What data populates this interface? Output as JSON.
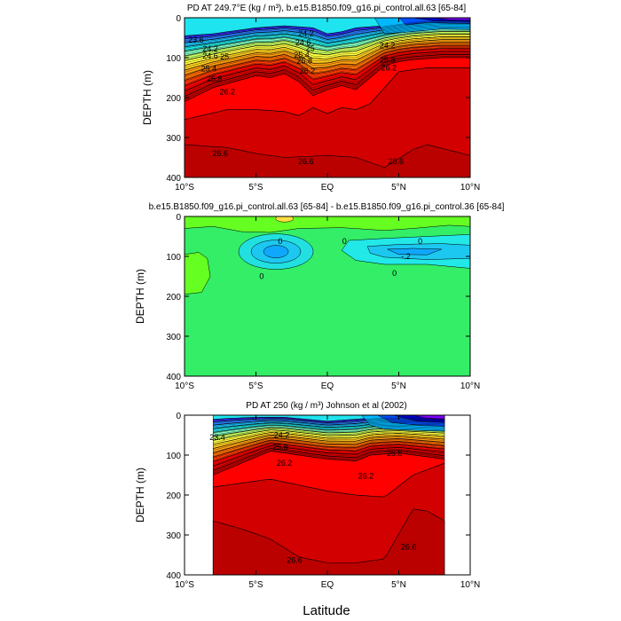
{
  "figure": {
    "xlabel": "Latitude"
  },
  "chart_data": [
    {
      "type": "heatmap",
      "title": "PD AT 249.7°E (kg / m³), b.e15.B1850.f09_g16.pi_control.all.63 [65-84]",
      "ylabel": "DEPTH (m)",
      "x_ticks": [
        "10°S",
        "5°S",
        "EQ",
        "5°N",
        "10°N"
      ],
      "y_ticks": [
        "0",
        "100",
        "200",
        "300",
        "400"
      ],
      "xlim": [
        -10,
        10
      ],
      "ylim": [
        400,
        0
      ],
      "data_xlim": [
        -10,
        10
      ],
      "palette": [
        "#3030ff",
        "#2a80ff",
        "#1cc4ff",
        "#20e6e6",
        "#80ffc0",
        "#c8ff60",
        "#ffff40",
        "#ffd020",
        "#ffa010",
        "#ff7000",
        "#ff3a00",
        "#ff0000",
        "#de0000",
        "#c00000"
      ],
      "deep_colors": [
        "#00b8ff",
        "#0050ff",
        "#0000d0",
        "#8000ff",
        "#e000ff"
      ],
      "contour_labels": [
        {
          "text": "23.6",
          "lat": -9.2,
          "depth": 55
        },
        {
          "text": "24.2",
          "lat": -8.2,
          "depth": 78
        },
        {
          "text": "24.6",
          "lat": -8.2,
          "depth": 96
        },
        {
          "text": "25",
          "lat": -7.2,
          "depth": 98
        },
        {
          "text": "25.4",
          "lat": -8.3,
          "depth": 128
        },
        {
          "text": "25.8",
          "lat": -7.9,
          "depth": 153
        },
        {
          "text": "26.2",
          "lat": -7.0,
          "depth": 185
        },
        {
          "text": "24.2",
          "lat": -1.5,
          "depth": 40
        },
        {
          "text": "24.6",
          "lat": -1.7,
          "depth": 62
        },
        {
          "text": "25",
          "lat": -1.2,
          "depth": 77
        },
        {
          "text": "25.4",
          "lat": -1.8,
          "depth": 93
        },
        {
          "text": "25.8",
          "lat": -1.6,
          "depth": 108
        },
        {
          "text": "26.2",
          "lat": -1.4,
          "depth": 133
        },
        {
          "text": "26.6",
          "lat": -7.5,
          "depth": 340
        },
        {
          "text": "26.6",
          "lat": -1.5,
          "depth": 360
        },
        {
          "text": "26.6",
          "lat": 4.8,
          "depth": 360
        },
        {
          "text": "24.2",
          "lat": 4.2,
          "depth": 70
        },
        {
          "text": "25.8",
          "lat": 4.2,
          "depth": 105
        },
        {
          "text": "26.2",
          "lat": 4.3,
          "depth": 125
        }
      ]
    },
    {
      "type": "heatmap",
      "title": "b.e15.B1850.f09_g16.pi_control.all.63 [65-84] - b.e15.B1850.f09_g16.pi_control.36 [65-84]",
      "ylabel": "DEPTH (m)",
      "x_ticks": [
        "10°S",
        "5°S",
        "EQ",
        "5°N",
        "10°N"
      ],
      "y_ticks": [
        "0",
        "100",
        "200",
        "300",
        "400"
      ],
      "xlim": [
        -10,
        10
      ],
      "ylim": [
        400,
        0
      ],
      "contour_labels": [
        {
          "text": "0",
          "lat": -3.3,
          "depth": 62
        },
        {
          "text": "0",
          "lat": -4.6,
          "depth": 150
        },
        {
          "text": "0",
          "lat": 1.2,
          "depth": 62
        },
        {
          "text": "0",
          "lat": 6.5,
          "depth": 62
        },
        {
          "text": "0",
          "lat": 4.7,
          "depth": 142
        },
        {
          "text": "-.2",
          "lat": 5.5,
          "depth": 100
        }
      ]
    },
    {
      "type": "heatmap",
      "title": "PD AT 250 (kg / m³) Johnson et al (2002)",
      "ylabel": "DEPTH (m)",
      "x_ticks": [
        "10°S",
        "5°S",
        "EQ",
        "5°N",
        "10°N"
      ],
      "y_ticks": [
        "0",
        "100",
        "200",
        "300",
        "400"
      ],
      "xlim": [
        -10,
        10
      ],
      "ylim": [
        400,
        0
      ],
      "data_xlim": [
        -8,
        8.2
      ],
      "contour_labels": [
        {
          "text": "23.4",
          "lat": -7.7,
          "depth": 55
        },
        {
          "text": "26.2",
          "lat": -3.0,
          "depth": 120
        },
        {
          "text": "26.2",
          "lat": 2.7,
          "depth": 152
        },
        {
          "text": "26.6",
          "lat": -2.3,
          "depth": 363
        },
        {
          "text": "26.6",
          "lat": 5.7,
          "depth": 330
        },
        {
          "text": "24.2",
          "lat": -3.2,
          "depth": 50
        },
        {
          "text": "25.8",
          "lat": -3.3,
          "depth": 80
        },
        {
          "text": "25.8",
          "lat": 4.7,
          "depth": 95
        }
      ]
    }
  ]
}
